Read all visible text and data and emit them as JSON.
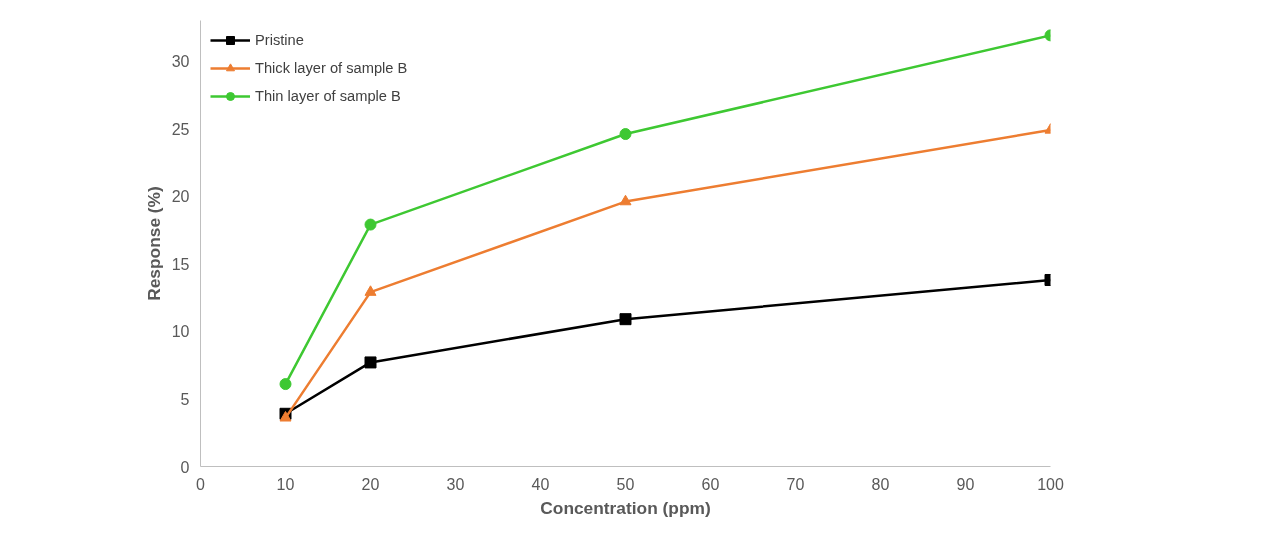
{
  "chart_data": {
    "type": "line",
    "xlabel": "Concentration (ppm)",
    "ylabel": "Response (%)",
    "x": [
      10,
      20,
      50,
      100
    ],
    "series": [
      {
        "name": "Pristine",
        "color": "#000000",
        "marker": "square",
        "values": [
          3.9,
          7.7,
          10.9,
          13.8
        ]
      },
      {
        "name": "Thick layer of sample B",
        "color": "#ed7d31",
        "marker": "triangle",
        "values": [
          3.6,
          12.9,
          19.6,
          24.9
        ]
      },
      {
        "name": "Thin layer of sample B",
        "color": "#3ec832",
        "marker": "circle",
        "values": [
          6.1,
          17.9,
          24.6,
          31.9
        ]
      }
    ],
    "xlim": [
      0,
      100
    ],
    "xticks": [
      0,
      10,
      20,
      30,
      40,
      50,
      60,
      70,
      80,
      90,
      100
    ],
    "ylim": [
      0,
      33
    ],
    "yticks": [
      0,
      5,
      10,
      15,
      20,
      25,
      30
    ],
    "grid": false,
    "legend": "top left",
    "line_style": "solid"
  }
}
